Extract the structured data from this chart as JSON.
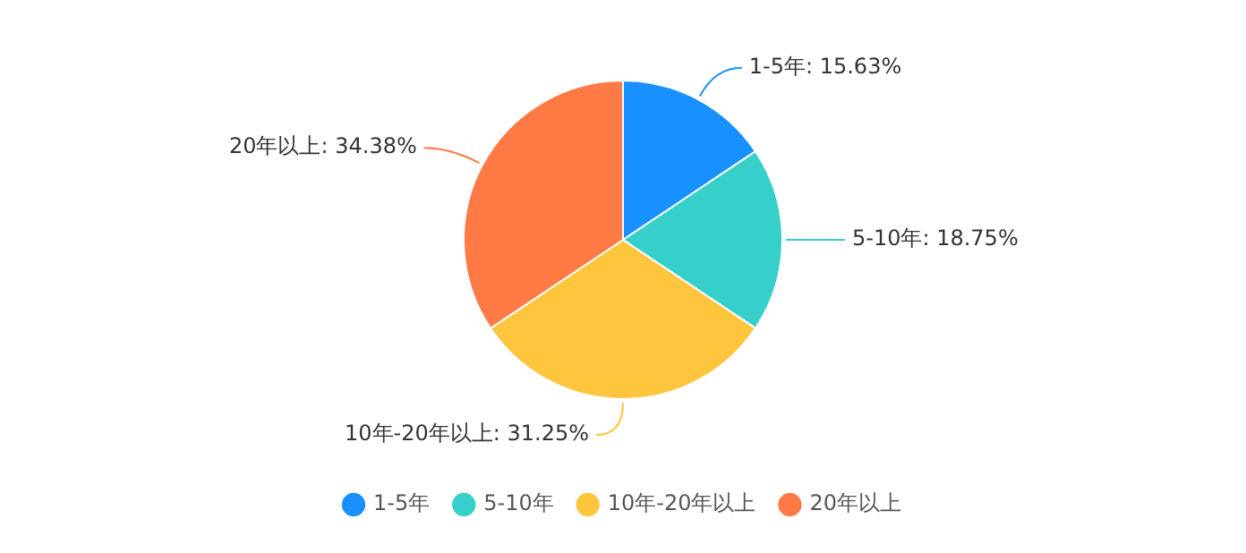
{
  "chart_data": {
    "type": "pie",
    "categories": [
      "1-5年",
      "5-10年",
      "10年-20年以上",
      "20年以上"
    ],
    "values": [
      15.63,
      18.75,
      31.25,
      34.38
    ],
    "value_labels": [
      "1-5年: 15.63%",
      "5-10年: 18.75%",
      "10年-20年以上: 31.25%",
      "20年以上: 34.38%"
    ],
    "colors": [
      "#1890ff",
      "#36cfc9",
      "#ffc53d",
      "#ff7a45"
    ],
    "legend": "bottom"
  }
}
